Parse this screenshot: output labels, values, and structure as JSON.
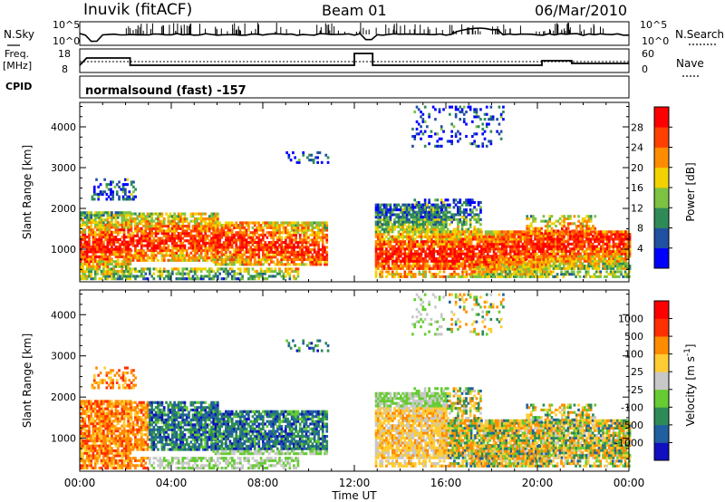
{
  "header": {
    "station": "Inuvik (fitACF)",
    "beam": "Beam 01",
    "date": "06/Mar/2010"
  },
  "top_panels": {
    "nsky_label": "N.Sky",
    "nsky_ticks": [
      "10^5",
      "10^0"
    ],
    "nsearch_label": "N.Search",
    "nsearch_ticks": [
      "10^5",
      "10^0"
    ],
    "freq_label_1": "Freq.",
    "freq_label_2": "[MHz]",
    "freq_ticks": [
      "18",
      "8"
    ],
    "nave_label": "Nave",
    "nave_ticks": [
      "60",
      "0"
    ],
    "cpid_label": "CPID",
    "cpid_value": "normalsound (fast) -157"
  },
  "chart_data": [
    {
      "type": "heatmap",
      "name": "power",
      "ylabel": "Slant Range [km]",
      "ylim": [
        200,
        4600
      ],
      "yticks": [
        "1000",
        "2000",
        "3000",
        "4000"
      ],
      "xlim_hours": [
        0,
        24
      ],
      "colorbar": {
        "label": "Power [dB]",
        "ticks": [
          "28",
          "24",
          "20",
          "16",
          "12",
          "8",
          "4"
        ],
        "colors": [
          "#0000ff",
          "#2050a0",
          "#2e8b57",
          "#7dc242",
          "#f2d200",
          "#ff8c00",
          "#ff4000",
          "#ff0000"
        ]
      }
    },
    {
      "type": "heatmap",
      "name": "velocity",
      "ylabel": "Slant Range [km]",
      "ylim": [
        200,
        4600
      ],
      "yticks": [
        "1000",
        "2000",
        "3000",
        "4000"
      ],
      "xlim_hours": [
        0,
        24
      ],
      "colorbar": {
        "label": "Velocity [m s",
        "label_sup": "-1",
        "label_end": "]",
        "ticks": [
          "1000",
          "500",
          "100",
          "25",
          "-25",
          "-100",
          "-500",
          "-1000"
        ],
        "colors": [
          "#1010c0",
          "#2060a0",
          "#2e8b57",
          "#66cc33",
          "#c8c8c8",
          "#ffcc33",
          "#ff8c00",
          "#ff3000",
          "#ff0000"
        ]
      }
    }
  ],
  "x_axis": {
    "ticks": [
      "00:00",
      "04:00",
      "08:00",
      "12:00",
      "16:00",
      "20:00",
      "00:00"
    ],
    "label": "Time UT"
  }
}
